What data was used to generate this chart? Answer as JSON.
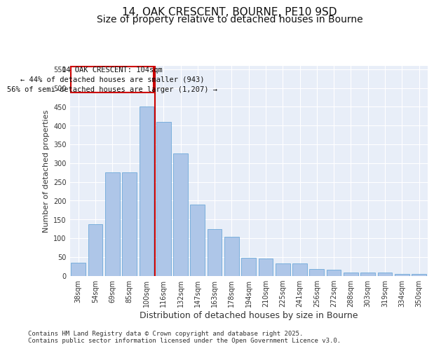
{
  "title": "14, OAK CRESCENT, BOURNE, PE10 9SD",
  "subtitle": "Size of property relative to detached houses in Bourne",
  "xlabel": "Distribution of detached houses by size in Bourne",
  "ylabel": "Number of detached properties",
  "categories": [
    "38sqm",
    "54sqm",
    "69sqm",
    "85sqm",
    "100sqm",
    "116sqm",
    "132sqm",
    "147sqm",
    "163sqm",
    "178sqm",
    "194sqm",
    "210sqm",
    "225sqm",
    "241sqm",
    "256sqm",
    "272sqm",
    "288sqm",
    "303sqm",
    "319sqm",
    "334sqm",
    "350sqm"
  ],
  "values": [
    35,
    137,
    275,
    275,
    450,
    410,
    325,
    190,
    125,
    103,
    47,
    45,
    32,
    32,
    17,
    16,
    8,
    8,
    9,
    5,
    5
  ],
  "bar_color": "#aec6e8",
  "bar_edge_color": "#5a9fd4",
  "vline_x": 4.5,
  "vline_color": "#cc0000",
  "annotation_text": "14 OAK CRESCENT: 104sqm\n← 44% of detached houses are smaller (943)\n56% of semi-detached houses are larger (1,207) →",
  "annotation_box_color": "#cc0000",
  "ylim": [
    0,
    560
  ],
  "yticks": [
    0,
    50,
    100,
    150,
    200,
    250,
    300,
    350,
    400,
    450,
    500,
    550
  ],
  "background_color": "#e8eef8",
  "footer": "Contains HM Land Registry data © Crown copyright and database right 2025.\nContains public sector information licensed under the Open Government Licence v3.0.",
  "title_fontsize": 11,
  "subtitle_fontsize": 10,
  "xlabel_fontsize": 9,
  "ylabel_fontsize": 8,
  "tick_fontsize": 7,
  "annotation_fontsize": 7.5,
  "footer_fontsize": 6.5
}
